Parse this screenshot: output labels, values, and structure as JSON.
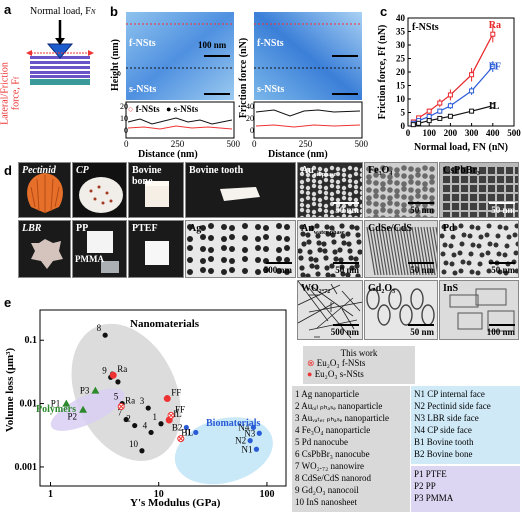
{
  "panel_a": {
    "label": "a",
    "normal_load_text": "Normal load, F",
    "normal_load_sub": "N",
    "lateral_text": "Lateral/Friction",
    "force_text": "force, F",
    "force_sub": "f"
  },
  "panel_b": {
    "label": "b",
    "height_axis": "Height (nm)",
    "friction_axis": "Friction force (nN)",
    "distance_label": "Distance (nm)",
    "f_nsts": "f-NSts",
    "s_nsts": "s-NSts",
    "scale": "100 nm",
    "legend_f": "f-NSts",
    "legend_s": "s-NSts",
    "left_y_ticks": [
      "20",
      "10",
      "0"
    ],
    "right_y_ticks": [
      "40",
      "20",
      "0"
    ],
    "x_ticks": [
      "0",
      "250",
      "500"
    ]
  },
  "panel_c": {
    "label": "c",
    "title": "f-NSts",
    "ylabel": "Friction force, F",
    "ylabel_sub": "f",
    "ylabel_unit": "(nN)",
    "xlabel": "Normal load, F",
    "xlabel_sub": "N",
    "xlabel_unit": "(nN)",
    "colors": {
      "Ra": "#e8262a",
      "FF": "#2a5bd7",
      "IL": "#111111"
    }
  },
  "chart_data": {
    "type": "line",
    "title": "f-NSts",
    "xlabel": "Normal load, FN (nN)",
    "ylabel": "Friction force, Ff (nN)",
    "xlim": [
      0,
      500
    ],
    "ylim": [
      0,
      40
    ],
    "x_ticks": [
      0,
      100,
      200,
      300,
      400,
      500
    ],
    "y_ticks": [
      0,
      5,
      10,
      15,
      20,
      25,
      30,
      35,
      40
    ],
    "series": [
      {
        "name": "Ra",
        "x": [
          25,
          50,
          100,
          150,
          200,
          300,
          400
        ],
        "y": [
          1.5,
          3,
          5.5,
          8.5,
          11.5,
          19,
          34
        ],
        "err": [
          0.5,
          0.8,
          1,
          1.5,
          2,
          2.5,
          3
        ]
      },
      {
        "name": "FF",
        "x": [
          25,
          50,
          100,
          150,
          200,
          300,
          400
        ],
        "y": [
          1,
          2,
          3.5,
          5.5,
          7.5,
          13,
          22
        ],
        "err": [
          0.3,
          0.5,
          0.8,
          1,
          1.2,
          1.5,
          2
        ]
      },
      {
        "name": "IL",
        "x": [
          25,
          50,
          100,
          150,
          200,
          300,
          400
        ],
        "y": [
          0.5,
          1,
          2,
          2.8,
          3.6,
          5.5,
          7.5
        ],
        "err": [
          0.2,
          0.3,
          0.3,
          0.4,
          0.5,
          0.6,
          0.8
        ]
      }
    ]
  },
  "panel_d": {
    "label": "d",
    "tiles": [
      {
        "label": "Pectinid",
        "italic": true,
        "scale": ""
      },
      {
        "label": "CP",
        "italic": true,
        "scale": ""
      },
      {
        "label": "Bovine bone",
        "italic": false,
        "scale": ""
      },
      {
        "label": "Bovine tooth",
        "italic": false,
        "scale": ""
      },
      {
        "label": "Au",
        "sub": "oil phase",
        "scale": "50 nm"
      },
      {
        "label": "Fe₃O₄",
        "scale": "50 nm"
      },
      {
        "label": "CsPbBr₃",
        "scale": "50 nm"
      },
      {
        "label": "LBR",
        "italic": true,
        "scale": ""
      },
      {
        "label": "PP",
        "extra": "PMMA",
        "scale": ""
      },
      {
        "label": "PTEF",
        "scale": ""
      },
      {
        "label": "Ag",
        "scale": "500 nm"
      },
      {
        "label": "Au",
        "sub": "water phase",
        "scale": "50 nm"
      },
      {
        "label": "CdSe/CdS",
        "scale": "50 nm"
      },
      {
        "label": "Pd",
        "scale": "50 nm"
      },
      {
        "label": "WO₂.₇₂",
        "scale": "500 nm"
      },
      {
        "label": "Gd₂O₃",
        "scale": "50 nm"
      },
      {
        "label": "InS",
        "scale": "100 nm"
      }
    ]
  },
  "panel_e": {
    "label": "e",
    "ylabel": "Volume loss (μm³)",
    "xlabel": "Y's Modulus (GPa)",
    "y_ticks": [
      "0.1",
      "0.01",
      "0.001"
    ],
    "x_ticks": [
      "1",
      "10",
      "100"
    ],
    "group_nano": "Nanomaterials",
    "group_poly": "Polymers",
    "group_bio": "Biomaterials",
    "this_work": "This work",
    "legend_f": "Eu₂O₃ f-NSts",
    "legend_s": "Eu₂O₃ s-NSts",
    "list_nano": [
      "1  Ag nanoparticle",
      "2  Auₒᵢₗ ₚₕₐₛₑ nanoparticle",
      "3  Auᵥₐₜₑᵣ ₚₕₐₛₑ nanoparticle",
      "4  Fe₃O₄ nanoparticle",
      "5  Pd nanocube",
      "6  CsPbBr₃ nanocube",
      "7  WO₂.₇₂ nanowire",
      "8  CdSe/CdS nanorod",
      "9  Gd₂O₃ nanocoil",
      "10 InS nanosheet"
    ],
    "list_bio": [
      "N1  CP internal face",
      "N2  Pectinid side face",
      "N3  LBR side face",
      "N4  CP side face",
      "B1  Bovine tooth",
      "B2  Bovine bone"
    ],
    "list_poly": [
      "P1  PTFE",
      "P2  PP",
      "P3  PMMA"
    ]
  }
}
